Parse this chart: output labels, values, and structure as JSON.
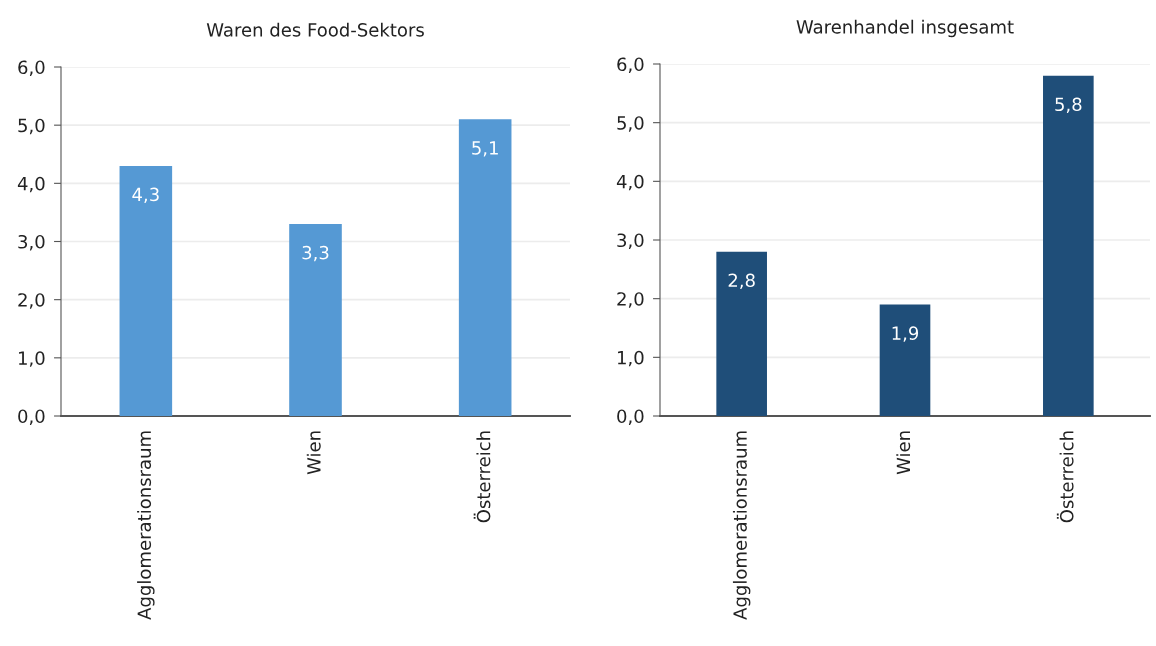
{
  "chart_data": [
    {
      "type": "bar",
      "title": "Waren des Food-Sektors",
      "categories": [
        "Agglomerationsraum",
        "Wien",
        "Österreich"
      ],
      "values": [
        4.3,
        3.3,
        5.1
      ],
      "color": "#5599d4",
      "value_labels": [
        "4,3",
        "3,3",
        "5,1"
      ],
      "ylim": [
        0,
        6
      ],
      "yticks": [
        {
          "value": 0,
          "label": "0,0"
        },
        {
          "value": 1,
          "label": "1,0"
        },
        {
          "value": 2,
          "label": "2,0"
        },
        {
          "value": 3,
          "label": "3,0"
        },
        {
          "value": 4,
          "label": "4,0"
        },
        {
          "value": 5,
          "label": "5,0"
        },
        {
          "value": 6,
          "label": "6,0"
        }
      ],
      "grid": "y",
      "legend": false
    },
    {
      "type": "bar",
      "title": "Warenhandel insgesamt",
      "categories": [
        "Agglomerationsraum",
        "Wien",
        "Österreich"
      ],
      "values": [
        2.8,
        1.9,
        5.8
      ],
      "color": "#1f4e79",
      "value_labels": [
        "2,8",
        "1,9",
        "5,8"
      ],
      "ylim": [
        0,
        6
      ],
      "yticks": [
        {
          "value": 0,
          "label": "0,0"
        },
        {
          "value": 1,
          "label": "1,0"
        },
        {
          "value": 2,
          "label": "2,0"
        },
        {
          "value": 3,
          "label": "3,0"
        },
        {
          "value": 4,
          "label": "4,0"
        },
        {
          "value": 5,
          "label": "5,0"
        },
        {
          "value": 6,
          "label": "6,0"
        }
      ],
      "grid": "y",
      "legend": false
    }
  ]
}
